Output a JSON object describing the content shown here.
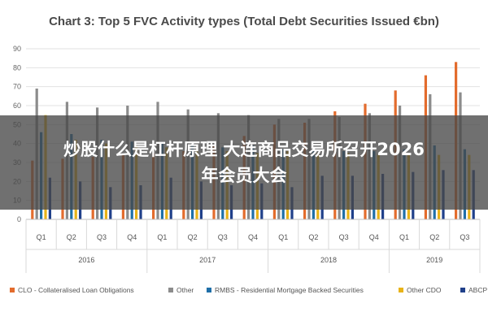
{
  "chart_data": {
    "type": "bar",
    "title": "Chart 3: Top 5 FVC Activity types (Total Debt Securities Issued €bn)",
    "ylim": [
      0,
      90
    ],
    "yticks": [
      0,
      10,
      20,
      30,
      40,
      50,
      60,
      70,
      80,
      90
    ],
    "grid": true,
    "legend_position": "bottom",
    "categories": [
      "Q1",
      "Q2",
      "Q3",
      "Q4",
      "Q1",
      "Q2",
      "Q3",
      "Q4",
      "Q1",
      "Q2",
      "Q3",
      "Q4",
      "Q1",
      "Q2",
      "Q3"
    ],
    "year_groups": [
      {
        "label": "2016",
        "count": 4
      },
      {
        "label": "2017",
        "count": 4
      },
      {
        "label": "2018",
        "count": 4
      },
      {
        "label": "2019",
        "count": 3
      }
    ],
    "series": [
      {
        "name": "CLO - Collateralised Loan Obligations",
        "color": "#e36c2d",
        "values": [
          31,
          32,
          33,
          34,
          35,
          36,
          39,
          44,
          50,
          51,
          57,
          61,
          68,
          76,
          83
        ]
      },
      {
        "name": "Other",
        "color": "#8c8c8c",
        "values": [
          69,
          62,
          59,
          60,
          62,
          58,
          56,
          55,
          53,
          53,
          54,
          56,
          60,
          66,
          67
        ]
      },
      {
        "name": "RMBS - Residential Mortgage Backed Securities",
        "color": "#1f6fa8",
        "values": [
          46,
          45,
          42,
          41,
          40,
          39,
          38,
          39,
          37,
          36,
          36,
          36,
          37,
          39,
          37
        ]
      },
      {
        "name": "Other CDO",
        "color": "#e8b318",
        "values": [
          55,
          42,
          40,
          39,
          38,
          37,
          36,
          35,
          36,
          35,
          35,
          34,
          35,
          34,
          34
        ]
      },
      {
        "name": "ABCP",
        "color": "#20408a",
        "values": [
          22,
          20,
          17,
          18,
          22,
          20,
          18,
          19,
          17,
          23,
          23,
          24,
          25,
          26,
          26
        ]
      }
    ]
  },
  "overlay": {
    "line1": "炒股什么是杠杆原理 大连商品交易所召开2026",
    "line2": "年会员大会"
  }
}
